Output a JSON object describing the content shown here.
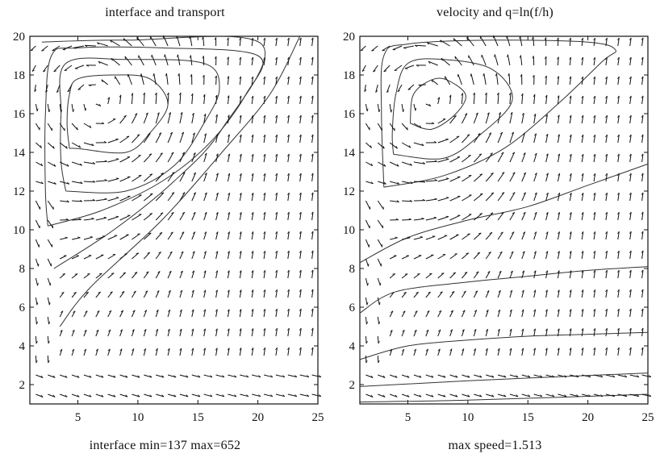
{
  "chart_data": [
    {
      "type": "vector-field-contour",
      "title": "interface and transport",
      "caption": "interface min=137 max=652",
      "xlim": [
        1,
        25
      ],
      "ylim": [
        1,
        20
      ],
      "xticks": [
        5,
        10,
        15,
        20,
        25
      ],
      "yticks": [
        2,
        4,
        6,
        8,
        10,
        12,
        14,
        16,
        18,
        20
      ],
      "grid": false,
      "vortex_center": [
        7.5,
        16.5
      ],
      "contours": [
        [
          [
            4.3,
            14.2
          ],
          [
            5,
            14.2
          ],
          [
            9,
            14.0
          ],
          [
            11,
            15.0
          ],
          [
            12.5,
            16.5
          ],
          [
            11,
            17.8
          ],
          [
            8,
            18.0
          ],
          [
            5,
            17.8
          ],
          [
            4.3,
            17.0
          ],
          [
            4.1,
            15.5
          ],
          [
            4.3,
            14.2
          ]
        ],
        [
          [
            4.0,
            12.0
          ],
          [
            9,
            12.0
          ],
          [
            13,
            13.3
          ],
          [
            15.5,
            15.5
          ],
          [
            16.8,
            17.3
          ],
          [
            15.5,
            18.6
          ],
          [
            9,
            18.8
          ],
          [
            4,
            18.6
          ],
          [
            3.6,
            16.0
          ],
          [
            3.6,
            13.5
          ],
          [
            4.0,
            12.0
          ]
        ],
        [
          [
            2.5,
            10.2
          ],
          [
            7,
            11.0
          ],
          [
            12,
            12.5
          ],
          [
            16,
            14.5
          ],
          [
            19,
            17.0
          ],
          [
            20,
            19.0
          ],
          [
            12,
            19.4
          ],
          [
            5,
            19.4
          ],
          [
            2.8,
            19.0
          ],
          [
            2.3,
            16.0
          ],
          [
            2.3,
            12.0
          ],
          [
            2.5,
            10.2
          ]
        ],
        [
          [
            3,
            8
          ],
          [
            8,
            10
          ],
          [
            13,
            12.5
          ],
          [
            17,
            15.2
          ],
          [
            20.3,
            19.6
          ],
          [
            9,
            19.8
          ],
          [
            2,
            19.7
          ]
        ],
        [
          [
            3.5,
            5
          ],
          [
            6,
            7
          ],
          [
            12,
            10.5
          ],
          [
            17,
            14
          ],
          [
            21,
            17
          ],
          [
            23.5,
            20
          ]
        ]
      ],
      "vector_grid": {
        "nx": 24,
        "ny": 19,
        "x0": 1.5,
        "y0": 1.5,
        "dx": 1.0,
        "dy": 1.0
      }
    },
    {
      "type": "vector-field-contour",
      "title": "velocity and q=ln(f/h)",
      "caption": "max speed=1.513",
      "xlim": [
        1,
        25
      ],
      "ylim": [
        1,
        20
      ],
      "xticks": [
        5,
        10,
        15,
        20,
        25
      ],
      "yticks": [
        2,
        4,
        6,
        8,
        10,
        12,
        14,
        16,
        18,
        20
      ],
      "grid": false,
      "vortex_center": [
        7.5,
        16.5
      ],
      "contours": [
        [
          [
            5.2,
            15.5
          ],
          [
            7,
            15.2
          ],
          [
            9,
            16.0
          ],
          [
            9.8,
            17.0
          ],
          [
            8,
            17.8
          ],
          [
            6.5,
            17.6
          ],
          [
            5.4,
            16.9
          ],
          [
            5.2,
            15.5
          ]
        ],
        [
          [
            3.8,
            13.9
          ],
          [
            8,
            13.7
          ],
          [
            11,
            14.9
          ],
          [
            13.7,
            16.7
          ],
          [
            12,
            18.3
          ],
          [
            8,
            18.8
          ],
          [
            5,
            18.6
          ],
          [
            4,
            17.0
          ],
          [
            3.7,
            15.0
          ],
          [
            3.8,
            13.9
          ]
        ],
        [
          [
            3.0,
            12.2
          ],
          [
            8,
            12.8
          ],
          [
            13,
            14.2
          ],
          [
            17.5,
            16.5
          ],
          [
            21.2,
            18.7
          ],
          [
            22.3,
            19.3
          ],
          [
            20,
            19.7
          ],
          [
            12,
            19.8
          ],
          [
            5,
            19.6
          ],
          [
            3,
            19.0
          ],
          [
            2.8,
            16.0
          ],
          [
            3.0,
            12.2
          ]
        ],
        [
          [
            1,
            8.3
          ],
          [
            5,
            9.6
          ],
          [
            10,
            10.5
          ],
          [
            15,
            11.2
          ],
          [
            20,
            12.3
          ],
          [
            25,
            13.4
          ]
        ],
        [
          [
            1,
            5.7
          ],
          [
            4,
            6.8
          ],
          [
            10,
            7.3
          ],
          [
            15,
            7.6
          ],
          [
            20,
            7.9
          ],
          [
            25,
            8.1
          ]
        ],
        [
          [
            1,
            3.3
          ],
          [
            5,
            4.0
          ],
          [
            10,
            4.3
          ],
          [
            15,
            4.5
          ],
          [
            20,
            4.6
          ],
          [
            25,
            4.7
          ]
        ],
        [
          [
            1,
            1.9
          ],
          [
            10,
            2.2
          ],
          [
            25,
            2.6
          ]
        ],
        [
          [
            1,
            1.1
          ],
          [
            10,
            1.2
          ],
          [
            25,
            1.5
          ]
        ]
      ],
      "vector_grid": {
        "nx": 24,
        "ny": 19,
        "x0": 1.5,
        "y0": 1.5,
        "dx": 1.0,
        "dy": 1.0
      }
    }
  ]
}
